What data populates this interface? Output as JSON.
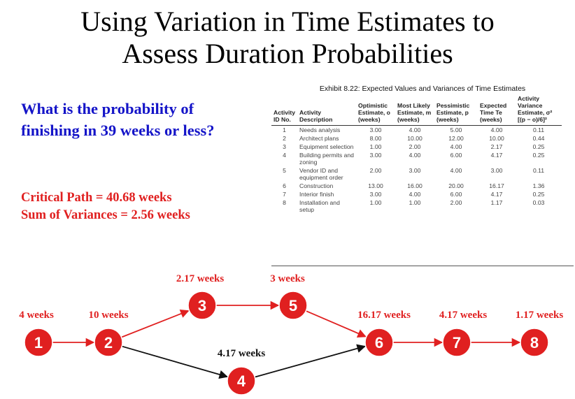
{
  "slide": {
    "title_line1": "Using Variation in Time Estimates to",
    "title_line2": "Assess Duration Probabilities",
    "question_line1": "What is the probability of",
    "question_line2": "finishing in 39 weeks or less?",
    "critical_path": "Critical Path = 40.68 weeks",
    "sum_variances": "Sum of Variances = 2.56 weeks"
  },
  "exhibit": {
    "caption": "Exhibit 8.22: Expected Values and Variances of Time Estimates",
    "headers": [
      "Activity ID No.",
      "Activity Description",
      "Optimistic Estimate, o (weeks)",
      "Most Likely Estimate, m (weeks)",
      "Pessimistic Estimate, p (weeks)",
      "Expected Time Te (weeks)",
      "Activity Variance Estimate, σ² [(p − o)/6]²"
    ],
    "rows": [
      [
        "1",
        "Needs analysis",
        "3.00",
        "4.00",
        "5.00",
        "4.00",
        "0.11"
      ],
      [
        "2",
        "Architect plans",
        "8.00",
        "10.00",
        "12.00",
        "10.00",
        "0.44"
      ],
      [
        "3",
        "Equipment selection",
        "1.00",
        "2.00",
        "4.00",
        "2.17",
        "0.25"
      ],
      [
        "4",
        "Building permits and zoning",
        "3.00",
        "4.00",
        "6.00",
        "4.17",
        "0.25"
      ],
      [
        "5",
        "Vendor ID and equipment order",
        "2.00",
        "3.00",
        "4.00",
        "3.00",
        "0.11"
      ],
      [
        "6",
        "Construction",
        "13.00",
        "16.00",
        "20.00",
        "16.17",
        "1.36"
      ],
      [
        "7",
        "Interior finish",
        "3.00",
        "4.00",
        "6.00",
        "4.17",
        "0.25"
      ],
      [
        "8",
        "Installation and setup",
        "1.00",
        "1.00",
        "2.00",
        "1.17",
        "0.03"
      ]
    ]
  },
  "network": {
    "critical_color": "#e02020",
    "normal_color": "#111111",
    "nodes": [
      {
        "id": "1",
        "label": "4 weeks"
      },
      {
        "id": "2",
        "label": "10 weeks"
      },
      {
        "id": "3",
        "label": "2.17 weeks"
      },
      {
        "id": "4",
        "label": "4.17 weeks"
      },
      {
        "id": "5",
        "label": "3 weeks"
      },
      {
        "id": "6",
        "label": "16.17 weeks"
      },
      {
        "id": "7",
        "label": "4.17 weeks"
      },
      {
        "id": "8",
        "label": "1.17 weeks"
      }
    ],
    "edges": [
      {
        "from": "1",
        "to": "2",
        "critical": true
      },
      {
        "from": "2",
        "to": "3",
        "critical": true
      },
      {
        "from": "3",
        "to": "5",
        "critical": true
      },
      {
        "from": "5",
        "to": "6",
        "critical": true
      },
      {
        "from": "2",
        "to": "4",
        "critical": false
      },
      {
        "from": "4",
        "to": "6",
        "critical": false
      },
      {
        "from": "6",
        "to": "7",
        "critical": true
      },
      {
        "from": "7",
        "to": "8",
        "critical": true
      }
    ]
  }
}
